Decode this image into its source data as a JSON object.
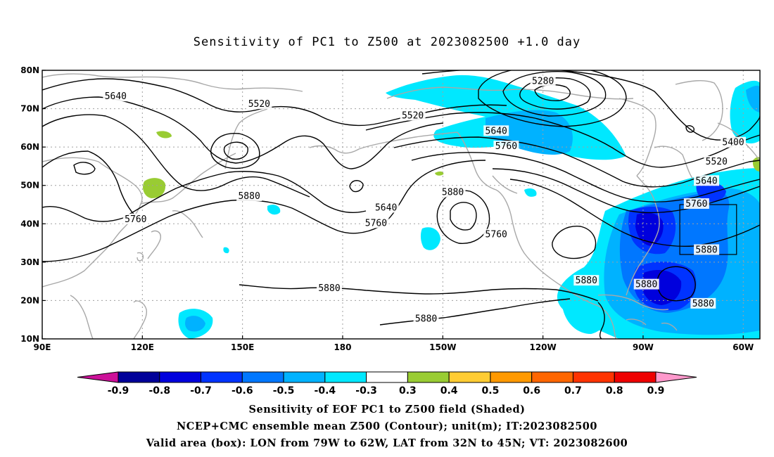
{
  "title": "Sensitivity of PC1 to Z500 at 2023082500 +1.0 day",
  "map": {
    "lon_range": [
      90,
      305
    ],
    "lat_range": [
      10,
      80
    ],
    "x_ticks": [
      {
        "lon": 90,
        "label": "90E"
      },
      {
        "lon": 120,
        "label": "120E"
      },
      {
        "lon": 150,
        "label": "150E"
      },
      {
        "lon": 180,
        "label": "180"
      },
      {
        "lon": 210,
        "label": "150W"
      },
      {
        "lon": 240,
        "label": "120W"
      },
      {
        "lon": 270,
        "label": "90W"
      },
      {
        "lon": 300,
        "label": "60W"
      }
    ],
    "y_ticks": [
      {
        "lat": 10,
        "label": "10N"
      },
      {
        "lat": 20,
        "label": "20N"
      },
      {
        "lat": 30,
        "label": "30N"
      },
      {
        "lat": 40,
        "label": "40N"
      },
      {
        "lat": 50,
        "label": "50N"
      },
      {
        "lat": 60,
        "label": "60N"
      },
      {
        "lat": 70,
        "label": "70N"
      },
      {
        "lat": 80,
        "label": "80N"
      }
    ],
    "valid_box": {
      "lon_min": 281,
      "lon_max": 298,
      "lat_min": 32,
      "lat_max": 45
    },
    "contour_labels": [
      {
        "text": "5640",
        "lon": 112,
        "lat": 73
      },
      {
        "text": "5520",
        "lon": 155,
        "lat": 71
      },
      {
        "text": "5520",
        "lon": 201,
        "lat": 68
      },
      {
        "text": "5280",
        "lon": 240,
        "lat": 77
      },
      {
        "text": "5640",
        "lon": 226,
        "lat": 64
      },
      {
        "text": "5760",
        "lon": 229,
        "lat": 60
      },
      {
        "text": "5400",
        "lon": 297,
        "lat": 61
      },
      {
        "text": "5520",
        "lon": 292,
        "lat": 56
      },
      {
        "text": "5640",
        "lon": 289,
        "lat": 51
      },
      {
        "text": "5760",
        "lon": 286,
        "lat": 45
      },
      {
        "text": "5880",
        "lon": 289,
        "lat": 33
      },
      {
        "text": "5880",
        "lon": 288,
        "lat": 19
      },
      {
        "text": "5880",
        "lon": 271,
        "lat": 24
      },
      {
        "text": "5880",
        "lon": 253,
        "lat": 25
      },
      {
        "text": "5880",
        "lon": 213,
        "lat": 48
      },
      {
        "text": "5760",
        "lon": 226,
        "lat": 37
      },
      {
        "text": "5640",
        "lon": 193,
        "lat": 44
      },
      {
        "text": "5760",
        "lon": 190,
        "lat": 40
      },
      {
        "text": "5880",
        "lon": 152,
        "lat": 47
      },
      {
        "text": "5760",
        "lon": 118,
        "lat": 41
      },
      {
        "text": "5880",
        "lon": 176,
        "lat": 23
      },
      {
        "text": "5880",
        "lon": 205,
        "lat": 15
      }
    ],
    "contour_color": "#000000",
    "coastline_color": "#a8a8a8"
  },
  "colorbar": {
    "labels": [
      "-0.9",
      "-0.8",
      "-0.7",
      "-0.6",
      "-0.5",
      "-0.4",
      "-0.3",
      "0.3",
      "0.4",
      "0.5",
      "0.6",
      "0.7",
      "0.8",
      "0.9"
    ],
    "colors": [
      "#000099",
      "#0000dd",
      "#0033ff",
      "#0077ff",
      "#00b2ff",
      "#00e8ff",
      "#ffffff",
      "#99cc33",
      "#ffcc33",
      "#ff9900",
      "#ff6600",
      "#ff3300",
      "#ee0000"
    ],
    "under_color": "#cc1199",
    "over_color": "#ff99cc"
  },
  "captions": [
    "Sensitivity of EOF PC1 to Z500 field (Shaded)",
    "NCEP+CMC ensemble mean Z500 (Contour); unit(m); IT:2023082500",
    "Valid area (box): LON from 79W to 62W, LAT from 32N to 45N; VT: 2023082600"
  ]
}
